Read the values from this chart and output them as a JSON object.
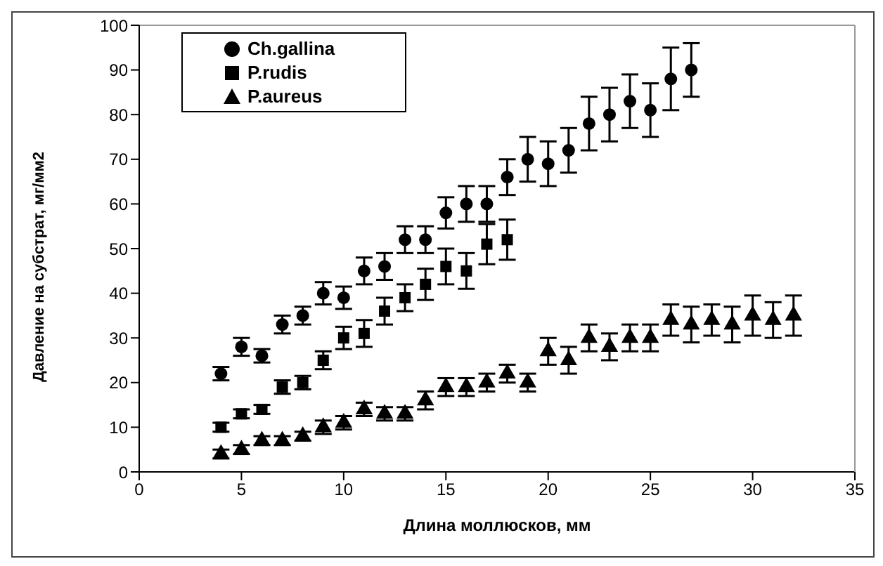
{
  "chart_data": {
    "type": "scatter",
    "xlabel": "Длина моллюсков, мм",
    "ylabel": "Давление на субстрат, мг/мм2",
    "xlim": [
      0,
      35
    ],
    "xticks": [
      0,
      5,
      10,
      15,
      20,
      25,
      30,
      35
    ],
    "ylim": [
      0,
      100
    ],
    "yticks": [
      0,
      10,
      20,
      30,
      40,
      50,
      60,
      70,
      80,
      90,
      100
    ],
    "legend": "top left",
    "series": [
      {
        "name": "Ch.gallina",
        "color": "#000000",
        "marker": "circle",
        "x": [
          4,
          5,
          6,
          7,
          8,
          9,
          10,
          11,
          12,
          13,
          14,
          15,
          16,
          17,
          18,
          19,
          20,
          21,
          22,
          23,
          24,
          25,
          26,
          27
        ],
        "values": [
          22,
          28,
          26,
          33,
          35,
          40,
          39,
          45,
          46,
          52,
          52,
          58,
          60,
          60,
          66,
          70,
          69,
          72,
          78,
          80,
          83,
          81,
          88,
          90
        ],
        "errors": [
          1.5,
          2,
          1.5,
          2,
          2,
          2.5,
          2.5,
          3,
          3,
          3,
          3,
          3.5,
          4,
          4,
          4,
          5,
          5,
          5,
          6,
          6,
          6,
          6,
          7,
          6
        ]
      },
      {
        "name": "P.rudis",
        "color": "#000000",
        "marker": "square",
        "x": [
          4,
          5,
          6,
          7,
          8,
          9,
          10,
          11,
          12,
          13,
          14,
          15,
          16,
          17,
          18
        ],
        "values": [
          10,
          13,
          14,
          19,
          20,
          25,
          30,
          31,
          36,
          39,
          42,
          46,
          45,
          51,
          52
        ],
        "errors": [
          1,
          1,
          1,
          1.5,
          1.5,
          2,
          2.5,
          3,
          3,
          3,
          3.5,
          4,
          4,
          4.5,
          4.5
        ]
      },
      {
        "name": "P.aureus",
        "color": "#000000",
        "marker": "triangle",
        "x": [
          4,
          5,
          6,
          7,
          8,
          9,
          10,
          11,
          12,
          13,
          14,
          15,
          16,
          17,
          18,
          19,
          20,
          21,
          22,
          23,
          24,
          25,
          26,
          27,
          28,
          29,
          30,
          31,
          32
        ],
        "values": [
          4,
          5,
          7,
          7,
          8,
          10,
          11,
          14,
          13,
          13,
          16,
          19,
          19,
          20,
          22,
          20,
          27,
          25,
          30,
          28,
          30,
          30,
          34,
          33,
          34,
          33,
          35,
          34,
          35
        ],
        "errors": [
          1,
          1,
          1,
          1,
          1,
          1.5,
          1.5,
          1.5,
          1.5,
          1.5,
          2,
          2,
          2,
          2,
          2,
          2,
          3,
          3,
          3,
          3,
          3,
          3,
          3.5,
          4,
          3.5,
          4,
          4.5,
          4,
          4.5
        ]
      }
    ]
  }
}
